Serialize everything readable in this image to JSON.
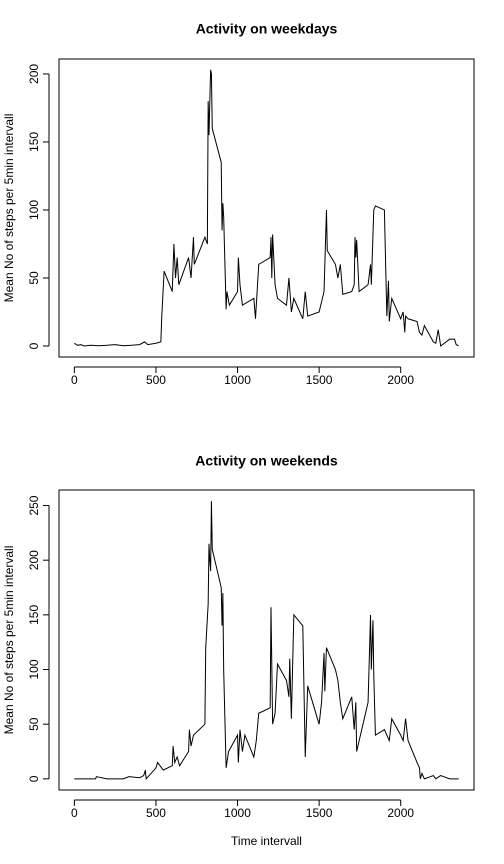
{
  "chart_data": [
    {
      "type": "line",
      "title": "Activity on weekdays",
      "ylabel": "Mean No of steps per 5min intervall",
      "color": "#000000",
      "x": [
        0,
        20,
        40,
        60,
        100,
        150,
        200,
        250,
        300,
        350,
        400,
        430,
        450,
        500,
        530,
        535,
        550,
        600,
        610,
        620,
        630,
        640,
        700,
        715,
        730,
        735,
        800,
        815,
        820,
        825,
        835,
        840,
        845,
        900,
        905,
        910,
        915,
        930,
        935,
        950,
        1000,
        1005,
        1015,
        1030,
        1100,
        1110,
        1130,
        1200,
        1205,
        1210,
        1215,
        1230,
        1245,
        1300,
        1315,
        1330,
        1345,
        1400,
        1415,
        1430,
        1500,
        1530,
        1545,
        1550,
        1600,
        1615,
        1630,
        1645,
        1700,
        1715,
        1720,
        1725,
        1730,
        1745,
        1800,
        1815,
        1820,
        1835,
        1845,
        1900,
        1915,
        1925,
        1930,
        1945,
        2000,
        2015,
        2025,
        2030,
        2045,
        2100,
        2115,
        2130,
        2145,
        2200,
        2215,
        2230,
        2245,
        2300,
        2330,
        2340,
        2355
      ],
      "values": [
        2,
        0.5,
        1,
        0,
        0.5,
        0.2,
        0.5,
        1,
        0.2,
        0.5,
        1,
        3,
        1,
        2,
        3,
        20,
        55,
        40,
        75,
        50,
        65,
        45,
        65,
        50,
        80,
        60,
        80,
        75,
        180,
        155,
        203,
        200,
        160,
        135,
        85,
        105,
        95,
        27,
        40,
        30,
        40,
        65,
        45,
        30,
        35,
        20,
        60,
        65,
        80,
        50,
        82,
        45,
        35,
        30,
        50,
        25,
        35,
        20,
        40,
        22,
        25,
        40,
        100,
        70,
        60,
        50,
        60,
        38,
        40,
        45,
        80,
        65,
        78,
        40,
        45,
        60,
        45,
        100,
        103,
        100,
        22,
        48,
        18,
        35,
        20,
        25,
        10,
        22,
        20,
        18,
        10,
        8,
        15,
        3,
        2,
        12,
        0,
        5,
        5,
        1,
        0
      ],
      "xlim": [
        -94.2,
        2449.2
      ],
      "ylim": [
        -8.1,
        211
      ],
      "xticks": [
        0,
        500,
        1000,
        1500,
        2000
      ],
      "yticks": [
        0,
        50,
        100,
        150,
        200
      ]
    },
    {
      "type": "line",
      "title": "Activity on weekends",
      "xlabel": "Time intervall",
      "ylabel": "Mean No of steps per 5min intervall",
      "color": "#000000",
      "x": [
        0,
        50,
        100,
        130,
        135,
        200,
        300,
        335,
        400,
        425,
        435,
        440,
        500,
        510,
        520,
        545,
        600,
        605,
        615,
        630,
        645,
        700,
        705,
        715,
        730,
        800,
        805,
        820,
        825,
        830,
        835,
        840,
        845,
        900,
        905,
        910,
        915,
        930,
        945,
        1000,
        1005,
        1015,
        1030,
        1045,
        1100,
        1115,
        1130,
        1200,
        1205,
        1215,
        1230,
        1245,
        1300,
        1315,
        1320,
        1330,
        1345,
        1400,
        1415,
        1430,
        1500,
        1515,
        1530,
        1535,
        1545,
        1600,
        1615,
        1630,
        1645,
        1700,
        1715,
        1725,
        1730,
        1800,
        1815,
        1820,
        1830,
        1835,
        1845,
        1900,
        1930,
        1945,
        2000,
        2015,
        2030,
        2045,
        2100,
        2115,
        2120,
        2130,
        2145,
        2200,
        2215,
        2245,
        2300,
        2330,
        2355
      ],
      "values": [
        0,
        0,
        0,
        0,
        2,
        0,
        0,
        2,
        1,
        3,
        8,
        0,
        10,
        15,
        13,
        8,
        12,
        30,
        15,
        20,
        12,
        25,
        45,
        30,
        40,
        50,
        120,
        160,
        215,
        200,
        190,
        254,
        210,
        175,
        140,
        170,
        100,
        10,
        25,
        40,
        15,
        45,
        25,
        40,
        20,
        35,
        60,
        65,
        157,
        50,
        60,
        105,
        90,
        75,
        110,
        55,
        150,
        140,
        20,
        85,
        50,
        70,
        115,
        80,
        120,
        100,
        90,
        70,
        55,
        75,
        45,
        70,
        25,
        70,
        150,
        100,
        145,
        95,
        40,
        45,
        35,
        55,
        40,
        35,
        55,
        35,
        15,
        10,
        0,
        5,
        0,
        3,
        0,
        3,
        0,
        0,
        0
      ],
      "xlim": [
        -94.2,
        2449.2
      ],
      "ylim": [
        -10.2,
        264.2
      ],
      "xticks": [
        0,
        500,
        1000,
        1500,
        2000
      ],
      "yticks": [
        0,
        50,
        100,
        150,
        200,
        250
      ]
    }
  ]
}
